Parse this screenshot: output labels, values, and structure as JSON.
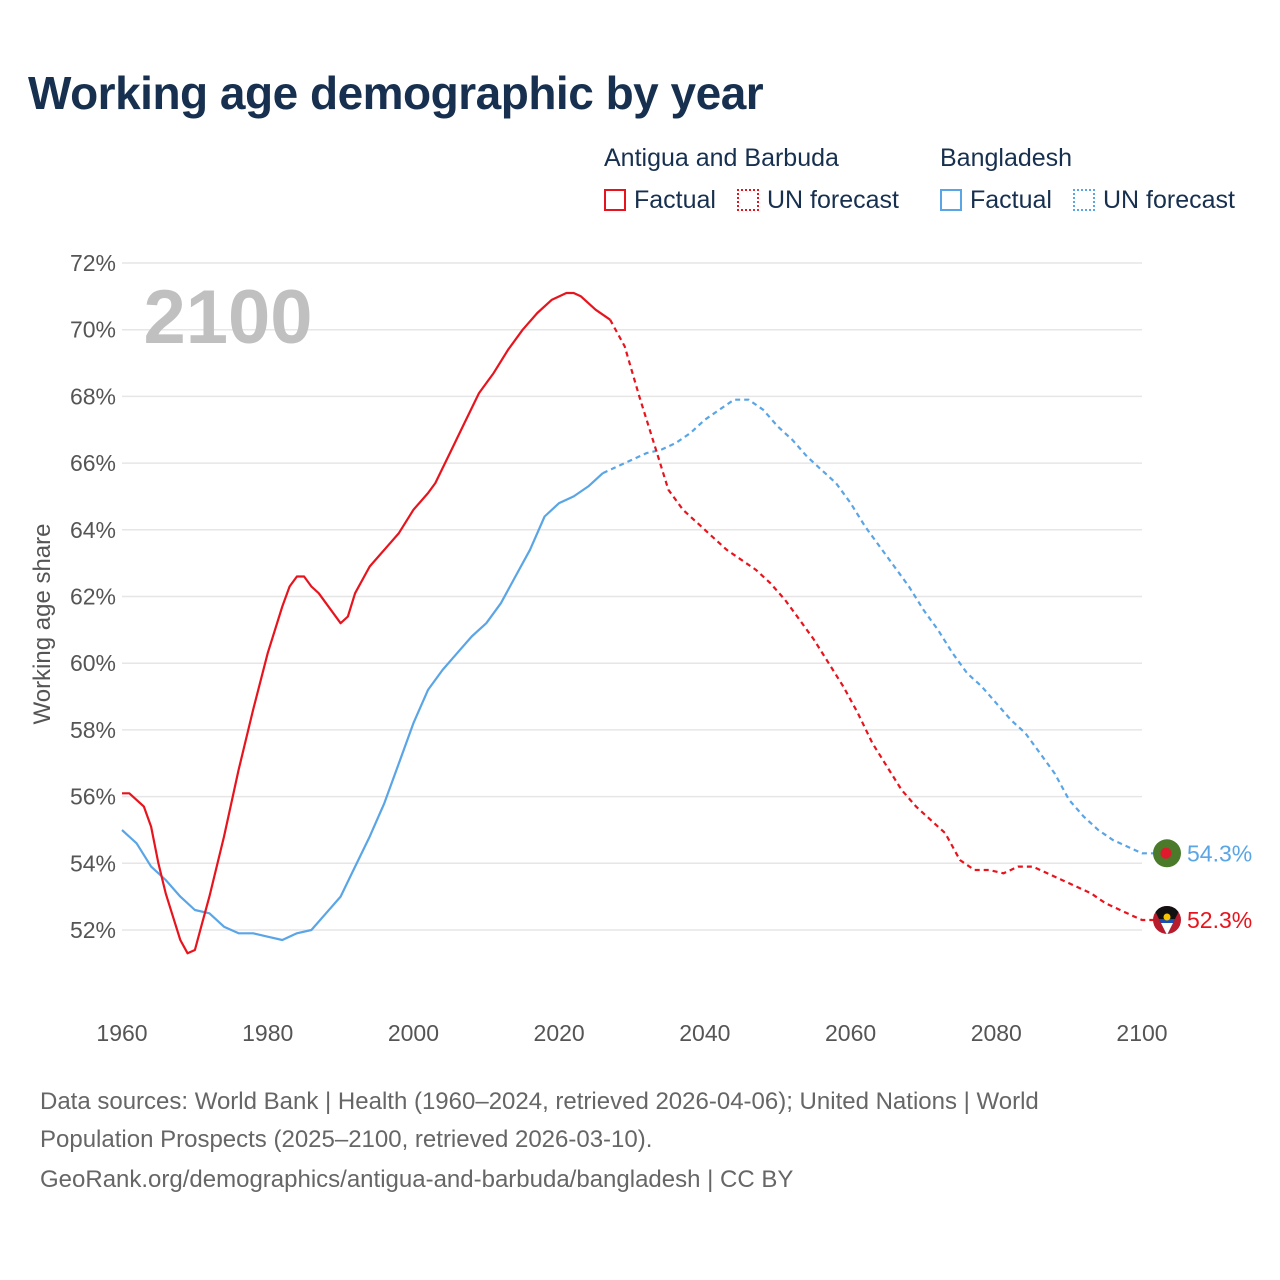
{
  "title": "Working age demographic by year",
  "legend": {
    "groups": [
      {
        "name": "Antigua and Barbuda",
        "factual_label": "Factual",
        "forecast_label": "UN forecast",
        "color": "#e8141d"
      },
      {
        "name": "Bangladesh",
        "factual_label": "Factual",
        "forecast_label": "UN forecast",
        "color": "#5aa5e6"
      }
    ]
  },
  "footer": {
    "line1": "Data sources: World Bank | Health (1960–2024, retrieved 2026-04-06); United Nations | World",
    "line2": "Population Prospects (2025–2100, retrieved 2026-03-10).",
    "line3": "GeoRank.org/demographics/antigua-and-barbuda/bangladesh | CC BY"
  },
  "chart_data": {
    "type": "line",
    "title": "Working age demographic by year",
    "year_watermark": "2100",
    "xlabel": "",
    "ylabel": "Working age share",
    "xlim": [
      1960,
      2103
    ],
    "ylim": [
      50,
      72
    ],
    "x_ticks": [
      "1960",
      "1980",
      "2000",
      "2020",
      "2040",
      "2060",
      "2080",
      "2100"
    ],
    "y_ticks": [
      "52%",
      "54%",
      "56%",
      "58%",
      "60%",
      "62%",
      "64%",
      "66%",
      "68%",
      "70%",
      "72%"
    ],
    "series": [
      {
        "name": "Antigua and Barbuda",
        "color": "#e8141d",
        "end_label": "52.3%",
        "factual": [
          [
            1960,
            56.1
          ],
          [
            1961,
            56.1
          ],
          [
            1963,
            55.7
          ],
          [
            1964,
            55.1
          ],
          [
            1965,
            54.0
          ],
          [
            1966,
            53.1
          ],
          [
            1967,
            52.4
          ],
          [
            1968,
            51.7
          ],
          [
            1969,
            51.3
          ],
          [
            1970,
            51.4
          ],
          [
            1971,
            52.2
          ],
          [
            1972,
            53.0
          ],
          [
            1974,
            54.8
          ],
          [
            1976,
            56.8
          ],
          [
            1978,
            58.6
          ],
          [
            1980,
            60.3
          ],
          [
            1982,
            61.7
          ],
          [
            1983,
            62.3
          ],
          [
            1984,
            62.6
          ],
          [
            1985,
            62.6
          ],
          [
            1986,
            62.3
          ],
          [
            1987,
            62.1
          ],
          [
            1988,
            61.8
          ],
          [
            1990,
            61.2
          ],
          [
            1991,
            61.4
          ],
          [
            1992,
            62.1
          ],
          [
            1994,
            62.9
          ],
          [
            1996,
            63.4
          ],
          [
            1998,
            63.9
          ],
          [
            2000,
            64.6
          ],
          [
            2002,
            65.1
          ],
          [
            2003,
            65.4
          ],
          [
            2005,
            66.3
          ],
          [
            2007,
            67.2
          ],
          [
            2009,
            68.1
          ],
          [
            2010,
            68.4
          ],
          [
            2011,
            68.7
          ],
          [
            2013,
            69.4
          ],
          [
            2015,
            70.0
          ],
          [
            2017,
            70.5
          ],
          [
            2019,
            70.9
          ],
          [
            2021,
            71.1
          ],
          [
            2022,
            71.1
          ],
          [
            2023,
            71.0
          ],
          [
            2025,
            70.6
          ],
          [
            2027,
            70.3
          ]
        ],
        "forecast": [
          [
            2027,
            70.3
          ],
          [
            2029,
            69.5
          ],
          [
            2031,
            68.0
          ],
          [
            2033,
            66.6
          ],
          [
            2035,
            65.2
          ],
          [
            2037,
            64.6
          ],
          [
            2039,
            64.2
          ],
          [
            2041,
            63.8
          ],
          [
            2043,
            63.4
          ],
          [
            2045,
            63.1
          ],
          [
            2047,
            62.8
          ],
          [
            2049,
            62.4
          ],
          [
            2051,
            61.9
          ],
          [
            2053,
            61.3
          ],
          [
            2055,
            60.7
          ],
          [
            2057,
            60.0
          ],
          [
            2059,
            59.3
          ],
          [
            2061,
            58.5
          ],
          [
            2063,
            57.6
          ],
          [
            2065,
            56.9
          ],
          [
            2067,
            56.2
          ],
          [
            2069,
            55.7
          ],
          [
            2071,
            55.3
          ],
          [
            2073,
            54.9
          ],
          [
            2075,
            54.1
          ],
          [
            2077,
            53.8
          ],
          [
            2079,
            53.8
          ],
          [
            2081,
            53.7
          ],
          [
            2083,
            53.9
          ],
          [
            2085,
            53.9
          ],
          [
            2087,
            53.7
          ],
          [
            2089,
            53.5
          ],
          [
            2091,
            53.3
          ],
          [
            2093,
            53.1
          ],
          [
            2095,
            52.8
          ],
          [
            2097,
            52.6
          ],
          [
            2099,
            52.4
          ],
          [
            2100,
            52.3
          ],
          [
            2102,
            52.3
          ]
        ]
      },
      {
        "name": "Bangladesh",
        "color": "#5aa5e6",
        "end_label": "54.3%",
        "factual": [
          [
            1960,
            55.0
          ],
          [
            1962,
            54.6
          ],
          [
            1964,
            53.9
          ],
          [
            1966,
            53.5
          ],
          [
            1968,
            53.0
          ],
          [
            1970,
            52.6
          ],
          [
            1972,
            52.5
          ],
          [
            1974,
            52.1
          ],
          [
            1976,
            51.9
          ],
          [
            1978,
            51.9
          ],
          [
            1980,
            51.8
          ],
          [
            1982,
            51.7
          ],
          [
            1984,
            51.9
          ],
          [
            1986,
            52.0
          ],
          [
            1988,
            52.5
          ],
          [
            1990,
            53.0
          ],
          [
            1992,
            53.9
          ],
          [
            1994,
            54.8
          ],
          [
            1996,
            55.8
          ],
          [
            1998,
            57.0
          ],
          [
            2000,
            58.2
          ],
          [
            2002,
            59.2
          ],
          [
            2004,
            59.8
          ],
          [
            2006,
            60.3
          ],
          [
            2008,
            60.8
          ],
          [
            2010,
            61.2
          ],
          [
            2012,
            61.8
          ],
          [
            2014,
            62.6
          ],
          [
            2016,
            63.4
          ],
          [
            2018,
            64.4
          ],
          [
            2020,
            64.8
          ],
          [
            2022,
            65.0
          ],
          [
            2024,
            65.3
          ],
          [
            2026,
            65.7
          ]
        ],
        "forecast": [
          [
            2026,
            65.7
          ],
          [
            2028,
            65.9
          ],
          [
            2030,
            66.1
          ],
          [
            2032,
            66.3
          ],
          [
            2034,
            66.4
          ],
          [
            2036,
            66.6
          ],
          [
            2038,
            66.9
          ],
          [
            2040,
            67.3
          ],
          [
            2042,
            67.6
          ],
          [
            2044,
            67.9
          ],
          [
            2046,
            67.9
          ],
          [
            2048,
            67.6
          ],
          [
            2050,
            67.1
          ],
          [
            2052,
            66.7
          ],
          [
            2054,
            66.2
          ],
          [
            2056,
            65.8
          ],
          [
            2058,
            65.4
          ],
          [
            2060,
            64.8
          ],
          [
            2062,
            64.1
          ],
          [
            2064,
            63.5
          ],
          [
            2066,
            62.9
          ],
          [
            2068,
            62.3
          ],
          [
            2070,
            61.6
          ],
          [
            2072,
            61.0
          ],
          [
            2074,
            60.3
          ],
          [
            2076,
            59.7
          ],
          [
            2078,
            59.3
          ],
          [
            2080,
            58.8
          ],
          [
            2082,
            58.3
          ],
          [
            2084,
            57.9
          ],
          [
            2086,
            57.3
          ],
          [
            2088,
            56.7
          ],
          [
            2090,
            55.9
          ],
          [
            2092,
            55.4
          ],
          [
            2094,
            55.0
          ],
          [
            2096,
            54.7
          ],
          [
            2098,
            54.5
          ],
          [
            2100,
            54.3
          ],
          [
            2102,
            54.3
          ]
        ]
      }
    ]
  }
}
